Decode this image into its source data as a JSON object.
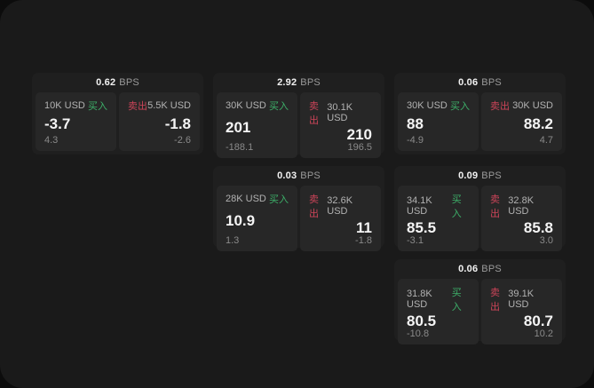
{
  "labels": {
    "bps_unit": "BPS",
    "buy": "买入",
    "sell": "卖出"
  },
  "colors": {
    "backdrop": "#0c0c0c",
    "surface": "#1a1a1a",
    "card": "#1f1f1f",
    "panel": "#272727",
    "buy_green": "#3db069",
    "sell_red": "#cb4458"
  },
  "cards": [
    {
      "bps": "0.62",
      "buy": {
        "amount": "10K USD",
        "value": "-3.7",
        "delta": "4.3"
      },
      "sell": {
        "amount": "5.5K USD",
        "value": "-1.8",
        "delta": "-2.6"
      }
    },
    {
      "bps": "2.92",
      "buy": {
        "amount": "30K USD",
        "value": "201",
        "delta": "-188.1"
      },
      "sell": {
        "amount": "30.1K USD",
        "value": "210",
        "delta": "196.5"
      }
    },
    {
      "bps": "0.06",
      "buy": {
        "amount": "30K USD",
        "value": "88",
        "delta": "-4.9"
      },
      "sell": {
        "amount": "30K USD",
        "value": "88.2",
        "delta": "4.7"
      }
    },
    {
      "bps": "0.03",
      "buy": {
        "amount": "28K USD",
        "value": "10.9",
        "delta": "1.3"
      },
      "sell": {
        "amount": "32.6K USD",
        "value": "11",
        "delta": "-1.8"
      }
    },
    {
      "bps": "0.09",
      "buy": {
        "amount": "34.1K USD",
        "value": "85.5",
        "delta": "-3.1"
      },
      "sell": {
        "amount": "32.8K USD",
        "value": "85.8",
        "delta": "3.0"
      }
    },
    {
      "bps": "0.06",
      "buy": {
        "amount": "31.8K USD",
        "value": "80.5",
        "delta": "-10.8"
      },
      "sell": {
        "amount": "39.1K USD",
        "value": "80.7",
        "delta": "10.2"
      }
    }
  ]
}
